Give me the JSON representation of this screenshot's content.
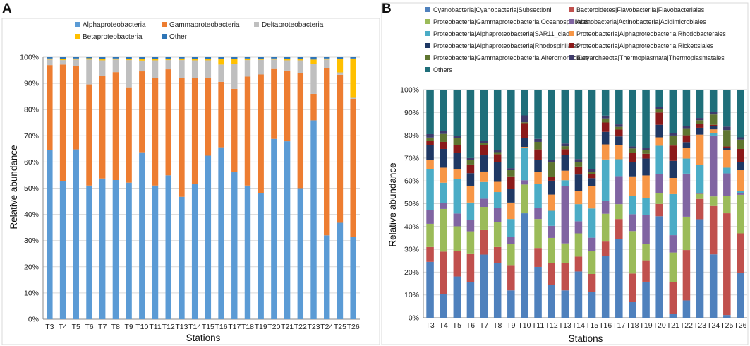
{
  "panel_labels": [
    "A",
    "B"
  ],
  "chart_data": [
    {
      "type": "bar",
      "stacked": true,
      "panel": "A",
      "xlabel": "Stations",
      "ylabel": "Relative abundance",
      "ylim": [
        0,
        100
      ],
      "yticks": [
        "0%",
        "10%",
        "20%",
        "30%",
        "40%",
        "50%",
        "60%",
        "70%",
        "80%",
        "90%",
        "100%"
      ],
      "categories": [
        "T3",
        "T4",
        "T5",
        "T6",
        "T7",
        "T8",
        "T9",
        "T10",
        "T11",
        "T12",
        "T13",
        "T14",
        "T15",
        "T16",
        "T17",
        "T18",
        "T19",
        "T20",
        "T21",
        "T22",
        "T23",
        "T24",
        "T25",
        "T26"
      ],
      "series": [
        {
          "name": "Alphaproteobacteria",
          "color": "#5B9BD5",
          "values": [
            64.5,
            52.7,
            64.8,
            51,
            53.7,
            53.1,
            52.1,
            63.7,
            51,
            54.9,
            46.7,
            51.7,
            62.4,
            65.6,
            56.2,
            51,
            48.2,
            68.8,
            67.9,
            50,
            75.9,
            32,
            36.8,
            31.3
          ]
        },
        {
          "name": "Gammaproteobacteria",
          "color": "#ED7D31",
          "values": [
            32.5,
            44.5,
            31.7,
            38.6,
            39.3,
            41.2,
            36.4,
            30.9,
            41,
            40.5,
            45.4,
            40.3,
            29.6,
            25,
            31.7,
            41.6,
            45.2,
            26.7,
            27,
            43.9,
            10.1,
            63.8,
            56.5,
            52.8
          ]
        },
        {
          "name": "Deltaproteobacteria",
          "color": "#BFBFBF",
          "values": [
            2.1,
            1.7,
            2.6,
            9.5,
            5.8,
            4.8,
            10.4,
            4.1,
            6.8,
            3.5,
            6.8,
            6.8,
            6.8,
            6.6,
            9.5,
            6.3,
            5.6,
            3.6,
            3.9,
            4.9,
            11.4,
            3.3,
            0.9,
            0.4
          ]
        },
        {
          "name": "Betaproteobacteria",
          "color": "#FFC000",
          "values": [
            0.4,
            0.5,
            0.4,
            0.5,
            0.5,
            0.4,
            0.5,
            0.5,
            0.6,
            0.5,
            0.6,
            0.6,
            0.6,
            2.2,
            1.8,
            0.6,
            0.4,
            0.4,
            0.6,
            0.6,
            1.7,
            0.4,
            5.2,
            15
          ]
        },
        {
          "name": "Other",
          "color": "#2E75B6",
          "values": [
            0.5,
            0.6,
            0.5,
            0.4,
            0.7,
            0.5,
            0.6,
            0.8,
            0.6,
            0.6,
            0.5,
            0.6,
            0.6,
            0.6,
            0.8,
            0.5,
            0.6,
            0.5,
            0.6,
            0.6,
            0.9,
            0.5,
            0.6,
            0.5
          ]
        }
      ]
    },
    {
      "type": "bar",
      "stacked": true,
      "panel": "B",
      "xlabel": "Stations",
      "ylabel": "Relative abundance",
      "ylim": [
        0,
        100
      ],
      "yticks": [
        "0%",
        "10%",
        "20%",
        "30%",
        "40%",
        "50%",
        "60%",
        "70%",
        "80%",
        "90%",
        "100%"
      ],
      "categories": [
        "T3",
        "T4",
        "T5",
        "T6",
        "T7",
        "T8",
        "T9",
        "T10",
        "T11",
        "T12",
        "T13",
        "T14",
        "T15",
        "T16",
        "T17",
        "T18",
        "T19",
        "T20",
        "T21",
        "T22",
        "T23",
        "T24",
        "T25",
        "T26"
      ],
      "series": [
        {
          "name": "Cyanobacteria|Cyanobacteria|SubsectionI",
          "color": "#4F81BD",
          "values": [
            24.5,
            10.3,
            18.1,
            15.7,
            27.7,
            24,
            12,
            45.8,
            22.3,
            14.5,
            12,
            20.3,
            11.2,
            27,
            34.5,
            7,
            15.8,
            44.5,
            1.8,
            7.6,
            43.2,
            27.8,
            1.2,
            19.5
          ]
        },
        {
          "name": "Bacteroidetes|Flavobacteriia|Flavobacteriales",
          "color": "#C0504D",
          "values": [
            6.5,
            18.7,
            11,
            12.2,
            10.7,
            7,
            11.1,
            0,
            8.3,
            9.5,
            12,
            6.5,
            8,
            6.4,
            8.8,
            12.4,
            9.4,
            5.4,
            13.7,
            22.1,
            8.9,
            21.2,
            44.6,
            17.5
          ]
        },
        {
          "name": "Proteobacteria|Gammaproteobacteria|Oceanospirillales",
          "color": "#9BBB59",
          "values": [
            10.2,
            18.7,
            11,
            10,
            10.2,
            11,
            9.4,
            12.6,
            12.7,
            11,
            8.6,
            10.2,
            9.9,
            12.2,
            6.5,
            18.6,
            7.3,
            4.8,
            13.1,
            14.6,
            2.2,
            4.2,
            7.5,
            16.9
          ]
        },
        {
          "name": "Actinobacteria|Actinobacteria|Acidimicrobiales",
          "color": "#8064A2",
          "values": [
            6,
            2.6,
            5.6,
            5,
            3.6,
            6.2,
            3,
            1.9,
            4.8,
            5.3,
            25,
            5.3,
            6,
            5.8,
            12.3,
            7.4,
            12.7,
            8.3,
            7.6,
            18.9,
            0.5,
            26.7,
            10,
            0.8
          ]
        },
        {
          "name": "Proteobacteria|Alphaproteobacteria|SAR11_clade",
          "color": "#4BACC6",
          "values": [
            18.1,
            8.9,
            15.1,
            7.6,
            7.3,
            6.9,
            7.8,
            14.2,
            10.6,
            6.6,
            2.7,
            7.5,
            12.8,
            18,
            7.4,
            8,
            7.2,
            12.4,
            18,
            6.6,
            12.2,
            1,
            2.5,
            1
          ]
        },
        {
          "name": "Proteobacteria|Alphaproteobacteria|Rhodobacterales",
          "color": "#F79646",
          "values": [
            3.8,
            6.6,
            4.2,
            7.4,
            4.6,
            4.5,
            7.2,
            0.4,
            5.2,
            7.1,
            4.2,
            5.7,
            9.7,
            6.6,
            6.3,
            8.6,
            10,
            3.7,
            7.1,
            4.7,
            13.3,
            1.7,
            7.6,
            9
          ]
        },
        {
          "name": "Proteobacteria|Alphaproteobacteria|Rhodospirillales",
          "color": "#1F3864",
          "values": [
            6.5,
            8.2,
            7.3,
            5.5,
            7.1,
            8.7,
            6.1,
            4,
            5.4,
            6.1,
            6.9,
            7.3,
            3.6,
            5.5,
            3.7,
            6.4,
            7.4,
            5.5,
            7.5,
            2.5,
            3,
            1.5,
            1.2,
            3.7
          ]
        },
        {
          "name": "Proteobacteria|Alphaproteobacteria|Rickettsiales",
          "color": "#8B1A1A",
          "values": [
            1.9,
            3.1,
            3.5,
            3.8,
            4.5,
            3.4,
            5.4,
            6.4,
            4.5,
            1.8,
            2.5,
            3.5,
            1.9,
            4.1,
            3,
            4,
            2.1,
            5.4,
            6.7,
            3,
            1.8,
            0.5,
            0.5,
            5.6
          ]
        },
        {
          "name": "Proteobacteria|Gammaproteobacteria|Alteromonadales",
          "color": "#5F7530",
          "values": [
            1.5,
            3.5,
            2.9,
            1.9,
            0.8,
            0.9,
            2.7,
            0.4,
            3.3,
            6.2,
            1.3,
            1.9,
            0.8,
            1.8,
            1.2,
            1.8,
            1.5,
            1.4,
            4.4,
            3.1,
            1.5,
            4.5,
            7.2,
            4.1
          ]
        },
        {
          "name": "Euryarchaeota|Thermoplasmata|Thermoplasmatales",
          "color": "#3F3B6B",
          "values": [
            1.5,
            1.4,
            1,
            0.9,
            0.9,
            1,
            0.9,
            3,
            1.3,
            1.2,
            1.2,
            1.4,
            1.3,
            1.2,
            1.1,
            0.9,
            0.9,
            1.1,
            1,
            1.1,
            1,
            1,
            1.5,
            1
          ]
        },
        {
          "name": "Others",
          "color": "#1F6F7A",
          "values": [
            19.5,
            18,
            20.3,
            30,
            22.6,
            26.4,
            34.4,
            11.3,
            21.6,
            30.7,
            23.6,
            30.4,
            34.8,
            11.4,
            15.2,
            24.9,
            25.7,
            7.5,
            19.1,
            15.8,
            12.4,
            9.9,
            16.2,
            20.9
          ]
        }
      ]
    }
  ]
}
